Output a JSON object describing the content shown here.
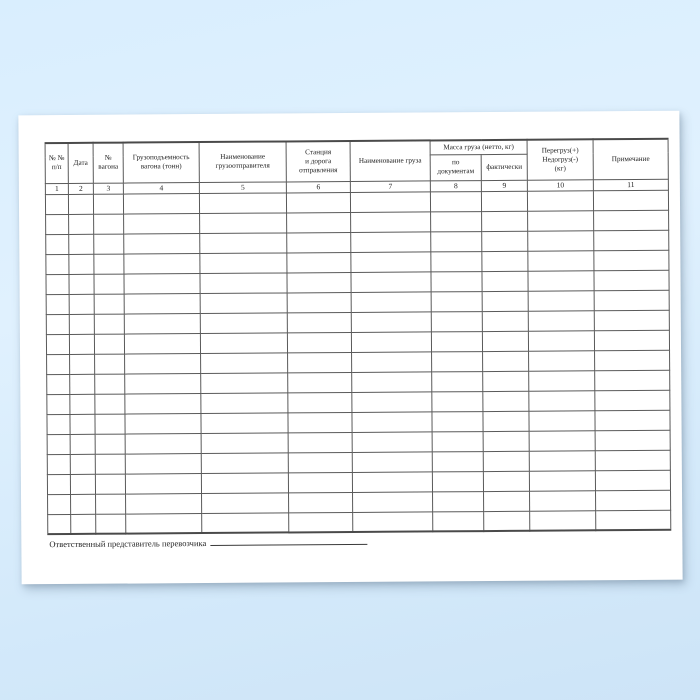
{
  "theme": {
    "background_top": "#d9eefe",
    "background_bottom": "#cde4f7",
    "paper_color": "#ffffff",
    "grid_line_color": "#5a5a5a",
    "text_color": "#1f1f1f"
  },
  "table": {
    "mass_group_label": "Масса груза (нетто, кг)",
    "columns": [
      {
        "number": "1",
        "header": "№ №\nп/п"
      },
      {
        "number": "2",
        "header": "Дата"
      },
      {
        "number": "3",
        "header": "№\nвагона"
      },
      {
        "number": "4",
        "header": "Грузоподъемность\nвагона (тонн)"
      },
      {
        "number": "5",
        "header": "Наименование\nгрузоотправителя"
      },
      {
        "number": "6",
        "header": "Станция\nи дорога\nотправления"
      },
      {
        "number": "7",
        "header": "Наименование груза"
      },
      {
        "number": "8",
        "header": "по\nдокументам"
      },
      {
        "number": "9",
        "header": "фактически"
      },
      {
        "number": "10",
        "header": "Перегруз(+)\nНедогруз(-)\n(кг)"
      },
      {
        "number": "11",
        "header": "Примечание"
      }
    ],
    "empty_row_count": 17
  },
  "footer": {
    "label": "Ответственный представитель перевозчика"
  }
}
